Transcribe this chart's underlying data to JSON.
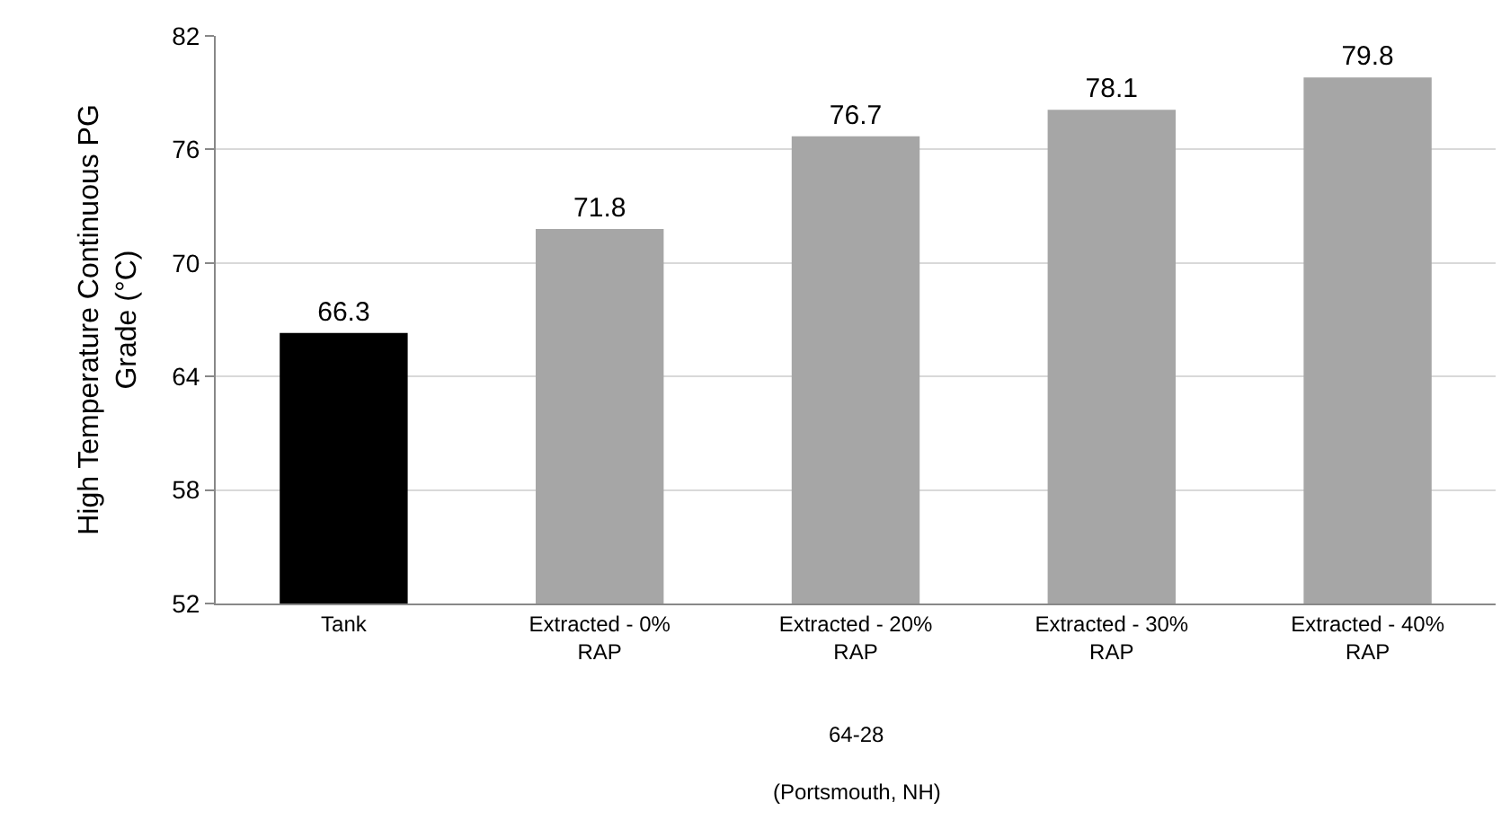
{
  "chart_data": {
    "type": "bar",
    "ylabel": "High Temperature Continuous PG Grade (°C)",
    "categories": [
      "Tank",
      "Extracted - 0% RAP",
      "Extracted - 20% RAP",
      "Extracted - 30% RAP",
      "Extracted - 40% RAP"
    ],
    "values": [
      66.3,
      71.8,
      76.7,
      78.1,
      79.8
    ],
    "colors": [
      "#000000",
      "#a6a6a6",
      "#a6a6a6",
      "#a6a6a6",
      "#a6a6a6"
    ],
    "ylim": [
      52,
      82
    ],
    "yticks": [
      52,
      58,
      64,
      70,
      76,
      82
    ],
    "grid": "y",
    "data_labels": true,
    "annotations": [
      "64-28",
      "(Portsmouth, NH)"
    ]
  }
}
